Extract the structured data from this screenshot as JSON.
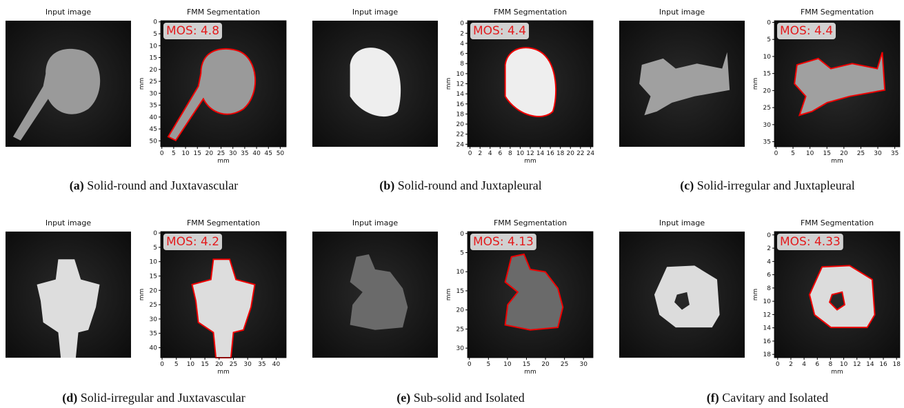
{
  "panels": [
    {
      "input_title": "Input image",
      "seg_title": "FMM Segmentation",
      "mos": "MOS: 4.8",
      "axis_label": "mm",
      "lim": 53,
      "ticks": [
        0,
        5,
        10,
        15,
        20,
        25,
        30,
        35,
        40,
        45,
        50
      ],
      "label": "(a)",
      "caption": "Solid-round and Juxtavascular"
    },
    {
      "input_title": "Input image",
      "seg_title": "FMM Segmentation",
      "mos": "MOS: 4.4",
      "axis_label": "mm",
      "lim": 25,
      "ticks": [
        0,
        2,
        4,
        6,
        8,
        10,
        12,
        14,
        16,
        18,
        20,
        22,
        24
      ],
      "label": "(b)",
      "caption": "Solid-round and Juxtapleural"
    },
    {
      "input_title": "Input image",
      "seg_title": "FMM Segmentation",
      "mos": "MOS: 4.4",
      "axis_label": "mm",
      "lim": 37,
      "ticks": [
        0,
        5,
        10,
        15,
        20,
        25,
        30,
        35
      ],
      "label": "(c)",
      "caption": "Solid-irregular and Juxtapleural"
    },
    {
      "input_title": "Input image",
      "seg_title": "FMM Segmentation",
      "mos": "MOS: 4.2",
      "axis_label": "mm",
      "lim": 44,
      "ticks": [
        0,
        5,
        10,
        15,
        20,
        25,
        30,
        35,
        40
      ],
      "label": "(d)",
      "caption": "Solid-irregular and Juxtavascular"
    },
    {
      "input_title": "Input image",
      "seg_title": "FMM Segmentation",
      "mos": "MOS: 4.13",
      "axis_label": "mm",
      "lim": 33,
      "ticks": [
        0,
        5,
        10,
        15,
        20,
        25,
        30
      ],
      "label": "(e)",
      "caption": "Sub-solid and Isolated"
    },
    {
      "input_title": "Input image",
      "seg_title": "FMM Segmentation",
      "mos": "MOS: 4.33",
      "axis_label": "mm",
      "lim": 19,
      "ticks": [
        0,
        2,
        4,
        6,
        8,
        10,
        12,
        14,
        16,
        18
      ],
      "label": "(f)",
      "caption": "Cavitary and Isolated"
    }
  ]
}
